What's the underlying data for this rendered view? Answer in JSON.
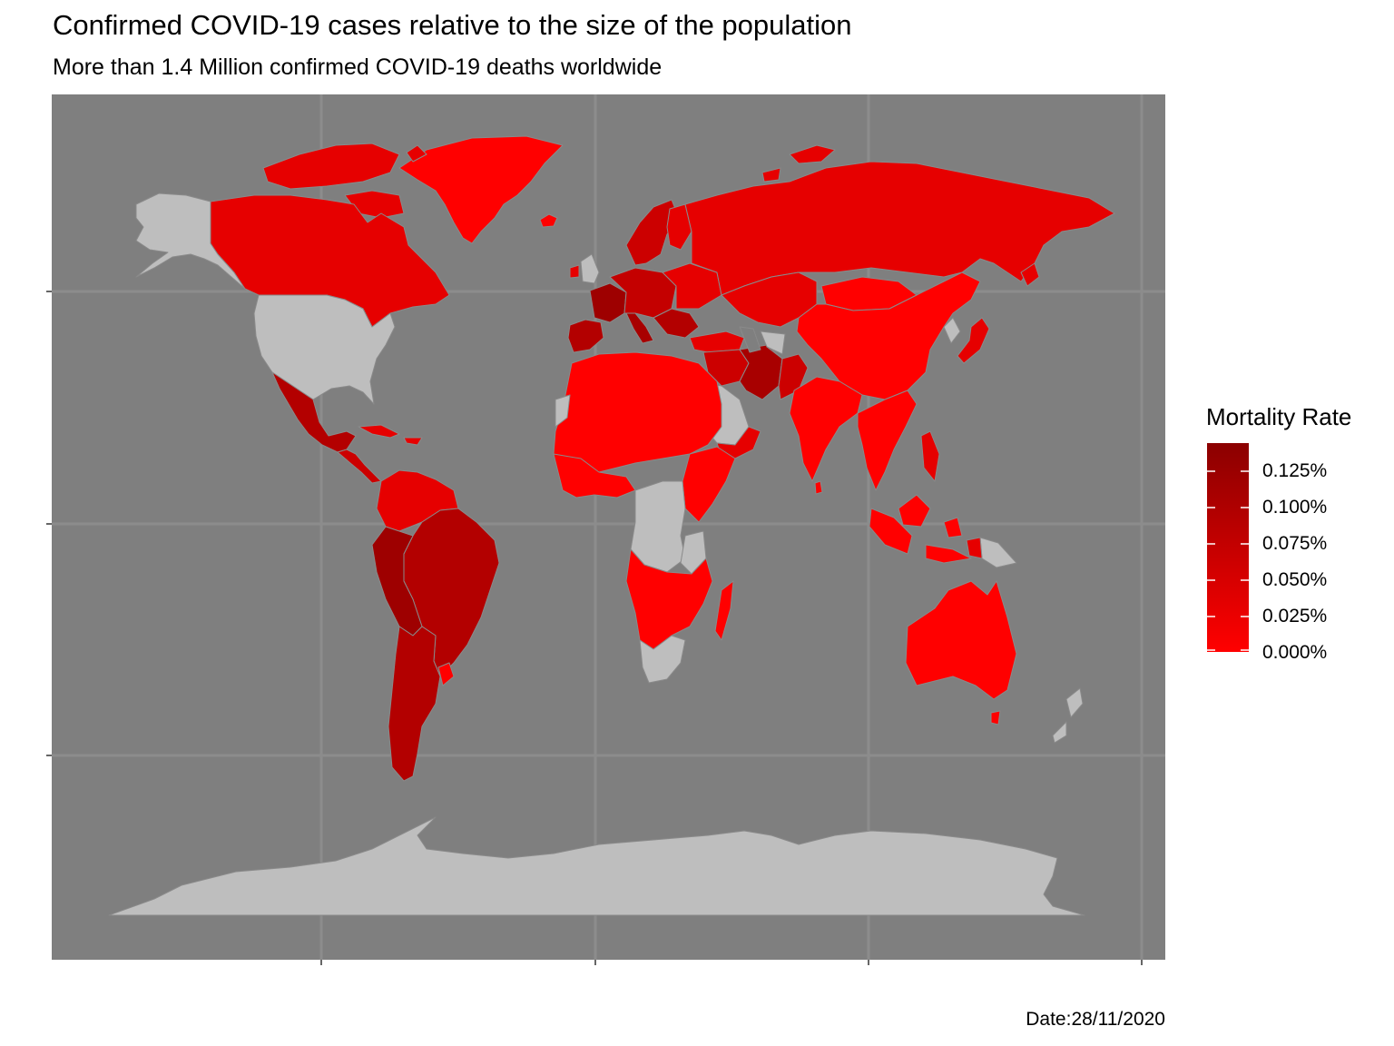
{
  "title": "Confirmed COVID-19 cases relative to the size of the population",
  "subtitle": "More than 1.4 Million confirmed COVID-19 deaths worldwide",
  "caption": "Date:28/11/2020",
  "colors": {
    "panel_background": "#7f7f7f",
    "grid_line": "#8c8c8c",
    "no_data": "#bebebe",
    "scale_low": "#ff0000",
    "scale_high": "#8b0000",
    "country_border": "#8a8a8a"
  },
  "legend": {
    "title": "Mortality Rate",
    "position": "right",
    "breaks": [
      {
        "label": "0.125%",
        "value": 0.125
      },
      {
        "label": "0.100%",
        "value": 0.1
      },
      {
        "label": "0.075%",
        "value": 0.075
      },
      {
        "label": "0.050%",
        "value": 0.05
      },
      {
        "label": "0.025%",
        "value": 0.025
      },
      {
        "label": "0.000%",
        "value": 0.0
      }
    ],
    "range": [
      0,
      0.145
    ]
  },
  "map": {
    "projection": "mercator",
    "axes_labels_shown": false,
    "no_data_regions": [
      "United States",
      "Alaska",
      "Saudi Arabia",
      "Congo (DRC)",
      "Tanzania",
      "South Africa",
      "Antarctica",
      "Turkmenistan",
      "Western Sahara",
      "New Zealand",
      "Papua New Guinea",
      "North Korea"
    ]
  }
}
